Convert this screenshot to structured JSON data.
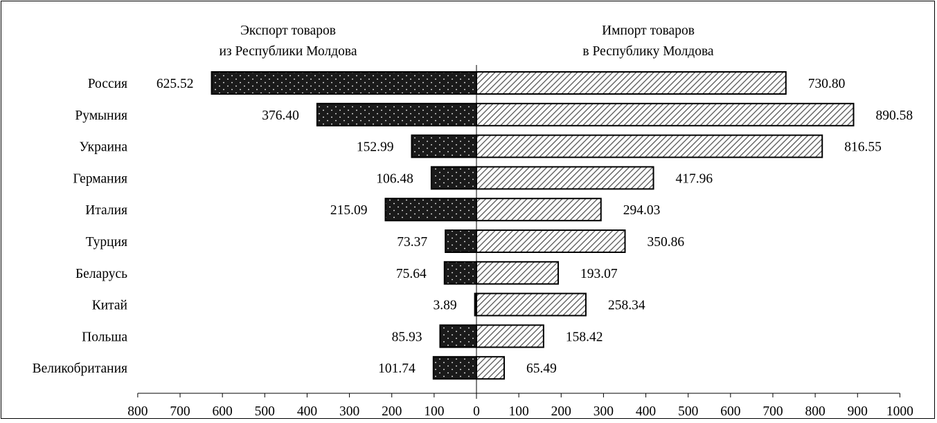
{
  "chart_data": {
    "type": "bar",
    "orientation": "horizontal-diverging",
    "categories": [
      "Россия",
      "Румыния",
      "Украина",
      "Германия",
      "Италия",
      "Турция",
      "Беларусь",
      "Китай",
      "Польша",
      "Великобритания"
    ],
    "series": [
      {
        "name": "Экспорт товаров из Республики Молдова",
        "name_lines": [
          "Экспорт товаров",
          "из Республики Молдова"
        ],
        "side": "left",
        "pattern": "dots-on-black",
        "color": "#1a1a1a",
        "values": [
          625.52,
          376.4,
          152.99,
          106.48,
          215.09,
          73.37,
          75.64,
          3.89,
          85.93,
          101.74
        ],
        "labels": [
          "625.52",
          "376.40",
          "152.99",
          "106.48",
          "215.09",
          "73.37",
          "75.64",
          "3.89",
          "85.93",
          "101.74"
        ]
      },
      {
        "name": "Импорт товаров в Республику Молдова",
        "name_lines": [
          "Импорт товаров",
          "в Республику Молдова"
        ],
        "side": "right",
        "pattern": "diagonal-hatch",
        "color": "#ffffff",
        "values": [
          730.8,
          890.58,
          816.55,
          417.96,
          294.03,
          350.86,
          193.07,
          258.34,
          158.42,
          65.49
        ],
        "labels": [
          "730.80",
          "890.58",
          "816.55",
          "417.96",
          "294.03",
          "350.86",
          "193.07",
          "258.34",
          "158.42",
          "65.49"
        ]
      }
    ],
    "x_left_ticks": [
      "800",
      "700",
      "600",
      "500",
      "400",
      "300",
      "200",
      "100"
    ],
    "x_center_tick": "0",
    "x_right_ticks": [
      "100",
      "200",
      "300",
      "400",
      "500",
      "600",
      "700",
      "800",
      "900",
      "1000"
    ],
    "xlim_left": 800,
    "xlim_right": 1000,
    "grid": false,
    "legend": "series titles above each side"
  }
}
